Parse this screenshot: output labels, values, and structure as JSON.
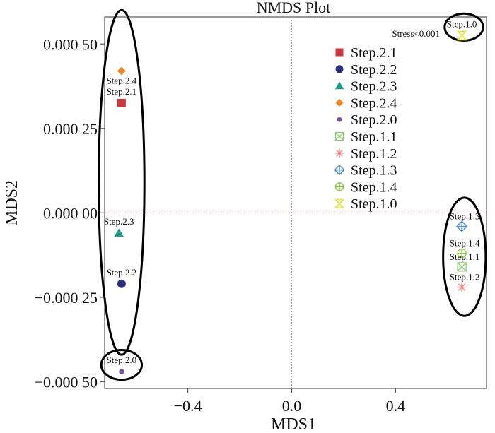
{
  "chart_data": {
    "type": "scatter",
    "title": "NMDS Plot",
    "xlabel": "MDS1",
    "ylabel": "MDS2",
    "xlim": [
      -0.72,
      0.75
    ],
    "ylim": [
      -0.00052,
      0.00058
    ],
    "x_ticks": [
      {
        "value": -0.4,
        "label": "−0.4"
      },
      {
        "value": 0.0,
        "label": "0.0"
      },
      {
        "value": 0.4,
        "label": "0.4"
      }
    ],
    "y_ticks": [
      {
        "value": 0.0005,
        "label": "0.000 50"
      },
      {
        "value": 0.00025,
        "label": "0.000 25"
      },
      {
        "value": 0.0,
        "label": "0.000 00"
      },
      {
        "value": -0.00025,
        "label": "−0.000 25"
      },
      {
        "value": -0.0005,
        "label": "−0.000 50"
      }
    ],
    "stress_label": "Stress<0.001",
    "series": [
      {
        "name": "Step.2.1",
        "marker": "square",
        "color": "#d0363e",
        "x": -0.655,
        "y": 0.000325,
        "label_pos": "above"
      },
      {
        "name": "Step.2.2",
        "marker": "circle",
        "color": "#2b2f7e",
        "x": -0.655,
        "y": -0.00021,
        "label_pos": "above"
      },
      {
        "name": "Step.2.3",
        "marker": "triangle",
        "color": "#1f9a8a",
        "x": -0.665,
        "y": -6e-05,
        "label_pos": "above"
      },
      {
        "name": "Step.2.4",
        "marker": "diamond",
        "color": "#f0841f",
        "x": -0.655,
        "y": 0.00042,
        "label_pos": "below"
      },
      {
        "name": "Step.2.0",
        "marker": "smallcircle",
        "color": "#7a4fa3",
        "x": -0.655,
        "y": -0.00047,
        "label_pos": "above"
      },
      {
        "name": "Step.1.1",
        "marker": "square-x",
        "color": "#8fcf75",
        "x": 0.655,
        "y": -0.00016,
        "label_pos": "left"
      },
      {
        "name": "Step.1.2",
        "marker": "asterisk",
        "color": "#f08a8a",
        "x": 0.655,
        "y": -0.00022,
        "label_pos": "left"
      },
      {
        "name": "Step.1.3",
        "marker": "diamond-plus",
        "color": "#4f8fd6",
        "x": 0.655,
        "y": -4e-05,
        "label_pos": "left"
      },
      {
        "name": "Step.1.4",
        "marker": "circle-plus",
        "color": "#8cc63e",
        "x": 0.655,
        "y": -0.00012,
        "label_pos": "left"
      },
      {
        "name": "Step.1.0",
        "marker": "bowtie",
        "color": "#e6e64a",
        "x": 0.655,
        "y": 0.000525,
        "label_pos": "above"
      }
    ],
    "legend": {
      "position": "top-right"
    },
    "groups": [
      {
        "name": "step-2-cluster",
        "cx": -0.655,
        "cy": 9e-05,
        "rx": 0.088,
        "ry": 0.00051
      },
      {
        "name": "step-2-0",
        "cx": -0.655,
        "cy": -0.00045,
        "rx": 0.078,
        "ry": 4.4e-05
      },
      {
        "name": "step-1-cluster",
        "cx": 0.665,
        "cy": -0.00013,
        "rx": 0.082,
        "ry": 0.000175
      },
      {
        "name": "step-1-0",
        "cx": 0.663,
        "cy": 0.00055,
        "rx": 0.074,
        "ry": 4e-05
      }
    ]
  }
}
